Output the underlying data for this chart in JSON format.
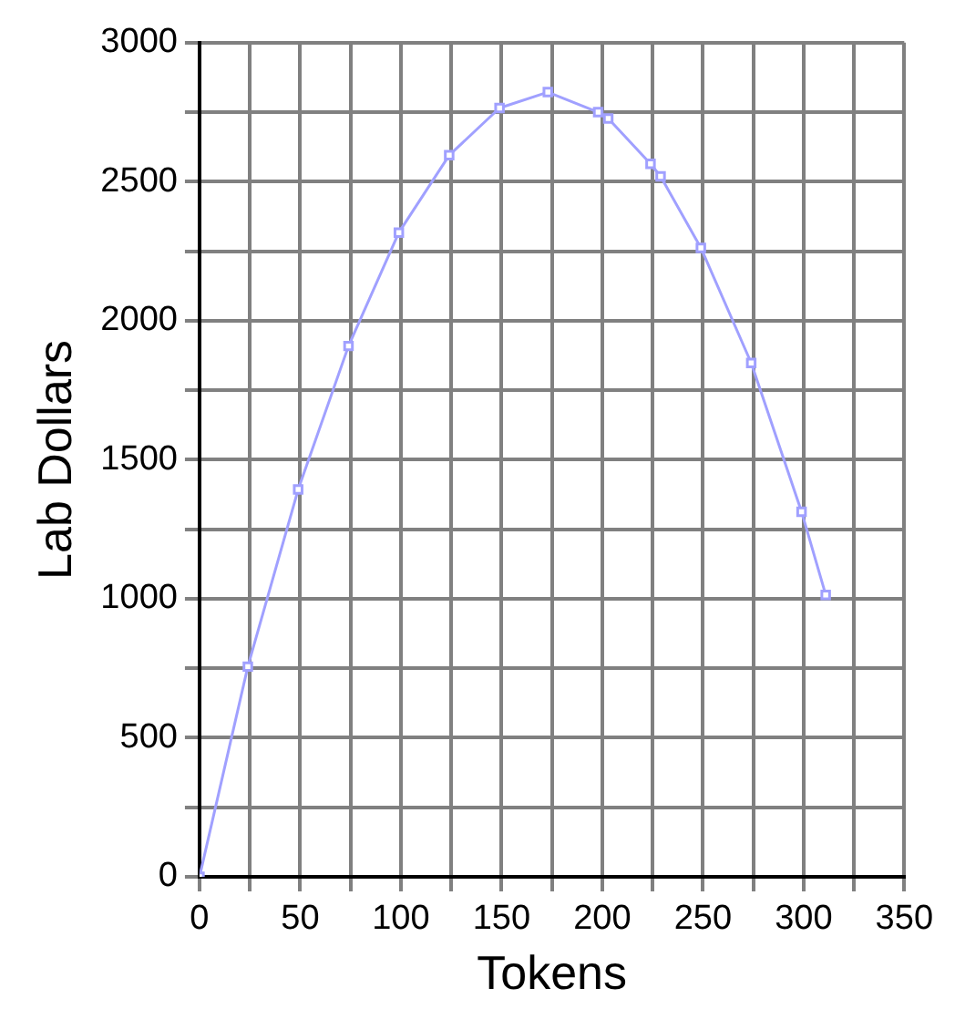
{
  "chart_data": {
    "type": "line",
    "xlabel": "Tokens",
    "ylabel": "Lab Dollars",
    "x": [
      0,
      24,
      49,
      74,
      99,
      124,
      149,
      173,
      198,
      203,
      224,
      229,
      249,
      274,
      299,
      311
    ],
    "series": [
      {
        "color": "#a0a0ff",
        "values": [
          0,
          756,
          1393,
          1909,
          2317,
          2595,
          2765,
          2822,
          2750,
          2727,
          2564,
          2519,
          2262,
          1848,
          1313,
          1014
        ]
      }
    ],
    "xlim": [
      0,
      350
    ],
    "ylim": [
      0,
      3000
    ],
    "xticks": [
      0,
      {
        "value": 25,
        "label": null
      },
      50,
      {
        "value": 75,
        "label": null
      },
      100,
      {
        "value": 125,
        "label": null
      },
      150,
      {
        "value": 175,
        "label": null
      },
      200,
      {
        "value": 225,
        "label": null
      },
      250,
      {
        "value": 275,
        "label": null
      },
      300,
      {
        "value": 325,
        "label": null
      },
      350
    ],
    "yticks": [
      0,
      {
        "value": 250,
        "label": null
      },
      500,
      {
        "value": 750,
        "label": null
      },
      1000,
      {
        "value": 1250,
        "label": null
      },
      1500,
      {
        "value": 1750,
        "label": null
      },
      2000,
      {
        "value": 2250,
        "label": null
      },
      2500,
      {
        "value": 2750,
        "label": null
      },
      3000
    ],
    "grid": true,
    "marker": "square",
    "line_style": "solid",
    "legend": false
  }
}
